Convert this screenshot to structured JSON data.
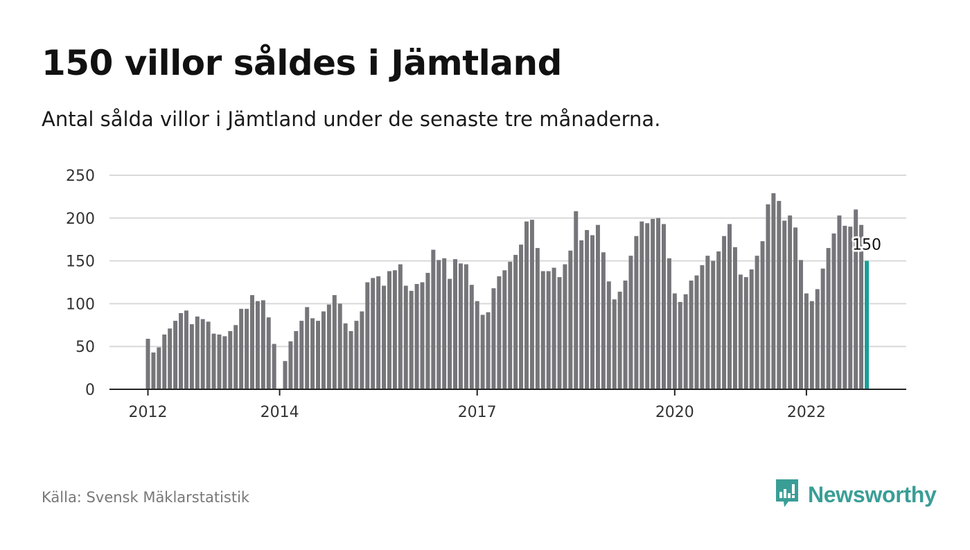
{
  "header": {
    "title": "150 villor såldes i Jämtland",
    "subtitle": "Antal sålda villor i Jämtland under de senaste tre månaderna."
  },
  "footer": {
    "source": "Källa: Svensk Mäklarstatistik",
    "brand": "Newsworthy"
  },
  "colors": {
    "bar": "#76757a",
    "highlight": "#1a9e95",
    "grid": "#d9d9d9",
    "axis": "#222222",
    "brand": "#3a9e96"
  },
  "icons": {
    "brand_logo": "bar-chart-speech-bubble-icon"
  },
  "chart_data": {
    "type": "bar",
    "title": "",
    "xlabel": "",
    "ylabel": "",
    "ylim": [
      0,
      250
    ],
    "yticks": [
      0,
      50,
      100,
      150,
      200,
      250
    ],
    "grid": true,
    "x_tick_labels": [
      {
        "label": "2012",
        "index": 0
      },
      {
        "label": "2014",
        "index": 24
      },
      {
        "label": "2017",
        "index": 60
      },
      {
        "label": "2020",
        "index": 96
      },
      {
        "label": "2022",
        "index": 120
      }
    ],
    "highlight_index": 131,
    "highlight_label": "150",
    "values": [
      59,
      43,
      49,
      64,
      71,
      80,
      89,
      92,
      76,
      85,
      82,
      79,
      65,
      64,
      62,
      68,
      75,
      94,
      94,
      110,
      103,
      104,
      84,
      53,
      0,
      33,
      56,
      68,
      80,
      96,
      83,
      80,
      91,
      99,
      110,
      100,
      77,
      68,
      80,
      91,
      125,
      130,
      132,
      121,
      138,
      139,
      146,
      121,
      115,
      123,
      125,
      136,
      163,
      151,
      153,
      129,
      152,
      147,
      146,
      122,
      103,
      87,
      90,
      118,
      132,
      139,
      149,
      157,
      169,
      196,
      198,
      165,
      138,
      138,
      142,
      131,
      146,
      162,
      208,
      174,
      186,
      180,
      192,
      160,
      126,
      105,
      114,
      127,
      156,
      179,
      196,
      194,
      199,
      200,
      193,
      153,
      112,
      102,
      111,
      127,
      133,
      145,
      156,
      150,
      161,
      179,
      193,
      166,
      134,
      131,
      140,
      156,
      173,
      216,
      229,
      220,
      197,
      203,
      189,
      151,
      112,
      103,
      117,
      141,
      165,
      182,
      203,
      191,
      190,
      210,
      192,
      150
    ]
  }
}
